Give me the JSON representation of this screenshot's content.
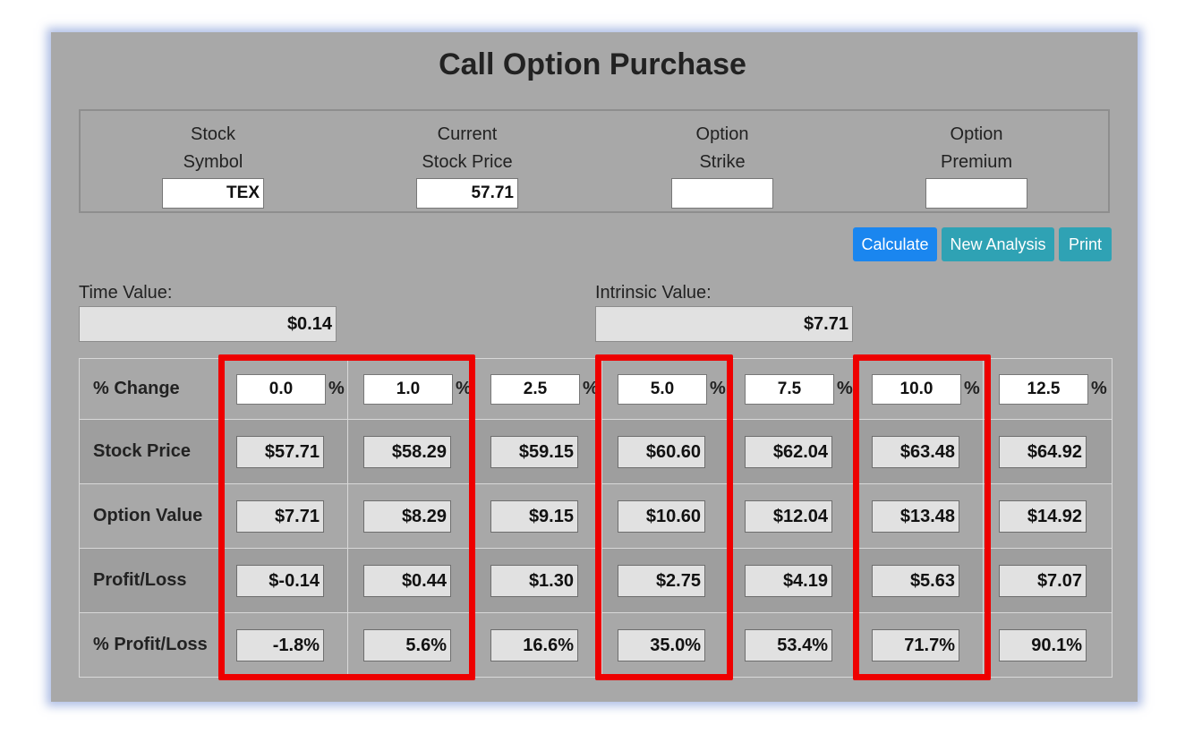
{
  "title": "Call Option Purchase",
  "inputs": [
    {
      "label_line1": "Stock",
      "label_line2": "Symbol",
      "value": "TEX"
    },
    {
      "label_line1": "Current",
      "label_line2": "Stock Price",
      "value": "57.71"
    },
    {
      "label_line1": "Option",
      "label_line2": "Strike",
      "value": ""
    },
    {
      "label_line1": "Option",
      "label_line2": "Premium",
      "value": ""
    }
  ],
  "buttons": {
    "calculate": "Calculate",
    "new_analysis": "New Analysis",
    "print": "Print"
  },
  "time_value": {
    "label": "Time Value:",
    "value": "$0.14"
  },
  "intrinsic_value": {
    "label": "Intrinsic Value:",
    "value": "$7.71"
  },
  "table": {
    "percent_sign": "%",
    "row_labels": [
      "% Change",
      "Stock Price",
      "Option Value",
      "Profit/Loss",
      "% Profit/Loss"
    ],
    "pct_changes": [
      "0.0",
      "1.0",
      "2.5",
      "5.0",
      "7.5",
      "10.0",
      "12.5"
    ],
    "stock_price": [
      "$57.71",
      "$58.29",
      "$59.15",
      "$60.60",
      "$62.04",
      "$63.48",
      "$64.92"
    ],
    "option_value": [
      "$7.71",
      "$8.29",
      "$9.15",
      "$10.60",
      "$12.04",
      "$13.48",
      "$14.92"
    ],
    "profit_loss": [
      "$-0.14",
      "$0.44",
      "$1.30",
      "$2.75",
      "$4.19",
      "$5.63",
      "$7.07"
    ],
    "pct_profit_loss": [
      "-1.8%",
      "5.6%",
      "16.6%",
      "35.0%",
      "53.4%",
      "71.7%",
      "90.1%"
    ]
  },
  "colors": {
    "highlight": "#ee0000",
    "calculate_button": "#1a86ef",
    "secondary_buttons": "#2fa2b4"
  }
}
